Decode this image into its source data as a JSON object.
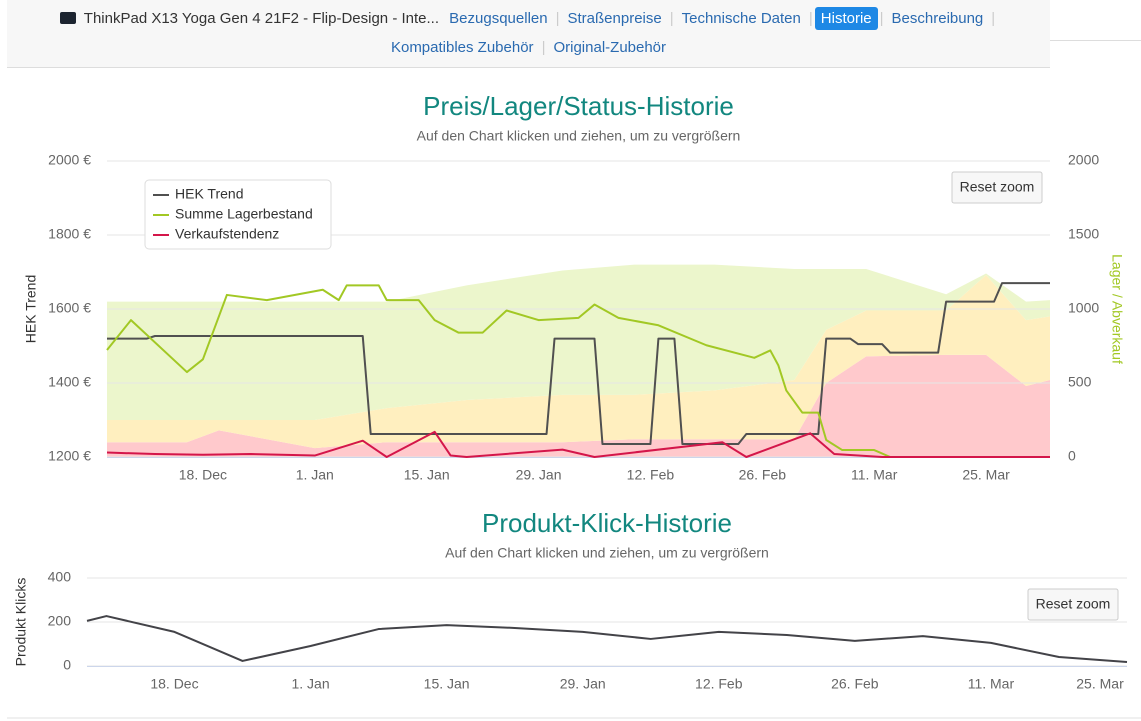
{
  "nav": {
    "product": "ThinkPad X13 Yoga Gen 4 21F2 - Flip-Design - Inte...",
    "links": [
      "Bezugsquellen",
      "Straßenpreise",
      "Technische Daten",
      "Historie",
      "Beschreibung",
      "Kompatibles Zubehör",
      "Original-Zubehör"
    ],
    "active": "Historie"
  },
  "chart_data": [
    {
      "type": "line",
      "title": "Preis/Lager/Status-Historie",
      "subtitle": "Auf den Chart klicken und ziehen, um zu vergrößern",
      "button": "Reset zoom",
      "y_label": "HEK Trend",
      "y2_label": "Lager / Abverkauf",
      "xlim": [
        "Dec 6",
        "Apr 2"
      ],
      "xticks": [
        {
          "value": "Dec 18",
          "label": "18. Dec"
        },
        {
          "value": "Jan 1",
          "label": "1. Jan"
        },
        {
          "value": "Jan 15",
          "label": "15. Jan"
        },
        {
          "value": "Jan 29",
          "label": "29. Jan"
        },
        {
          "value": "Feb 12",
          "label": "12. Feb"
        },
        {
          "value": "Feb 26",
          "label": "26. Feb"
        },
        {
          "value": "Mar 11",
          "label": "11. Mar"
        },
        {
          "value": "Mar 25",
          "label": "25. Mar"
        }
      ],
      "ylim": [
        1200,
        2000
      ],
      "yticks": [
        {
          "value": 1200,
          "label": "1200 €"
        },
        {
          "value": 1400,
          "label": "1400 €"
        },
        {
          "value": 1600,
          "label": "1600 €"
        },
        {
          "value": 1800,
          "label": "1800 €"
        },
        {
          "value": 2000,
          "label": "2000 €"
        }
      ],
      "y2lim": [
        0,
        2000
      ],
      "y2ticks": [
        0,
        500,
        1000,
        1500,
        2000
      ],
      "grid": true,
      "legend": "upper left",
      "series": [
        {
          "type": "area",
          "stack": true,
          "axis": "y2",
          "color": "#ffc9cc",
          "x": [
            "Dec 6",
            "Dec 16",
            "Dec 20",
            "Jan 1",
            "Jan 10",
            "Jan 20",
            "Feb 1",
            "Feb 10",
            "Feb 20",
            "Mar 1",
            "Mar 5",
            "Mar 10",
            "Mar 20",
            "Mar 25",
            "Mar 30",
            "Apr 2"
          ],
          "values": [
            100,
            100,
            180,
            60,
            100,
            100,
            100,
            120,
            120,
            120,
            500,
            680,
            690,
            690,
            480,
            520
          ]
        },
        {
          "type": "area",
          "stack": true,
          "axis": "y2",
          "color": "#ffefbf",
          "x": [
            "Dec 6",
            "Dec 16",
            "Dec 20",
            "Jan 1",
            "Jan 10",
            "Jan 20",
            "Feb 1",
            "Feb 10",
            "Feb 20",
            "Mar 1",
            "Mar 5",
            "Mar 10",
            "Mar 20",
            "Mar 25",
            "Mar 30",
            "Apr 2"
          ],
          "values": [
            150,
            150,
            70,
            190,
            230,
            285,
            320,
            300,
            330,
            400,
            360,
            310,
            300,
            540,
            445,
            430
          ]
        },
        {
          "type": "area",
          "stack": true,
          "axis": "y2",
          "color": "#ecf6cc",
          "x": [
            "Dec 6",
            "Dec 16",
            "Dec 20",
            "Jan 1",
            "Jan 10",
            "Jan 20",
            "Feb 1",
            "Feb 10",
            "Feb 20",
            "Mar 1",
            "Mar 5",
            "Mar 10",
            "Mar 20",
            "Mar 25",
            "Mar 30",
            "Apr 2"
          ],
          "values": [
            800,
            800,
            800,
            800,
            720,
            775,
            840,
            880,
            850,
            750,
            410,
            280,
            110,
            10,
            125,
            110
          ]
        },
        {
          "name": "HEK Trend",
          "color": "#505050",
          "x": [
            "Dec 6",
            "Dec 11",
            "Dec 12",
            "Jan 7",
            "Jan 8",
            "Jan 30",
            "Jan 31",
            "Feb 5",
            "Feb 6",
            "Feb 12",
            "Feb 13",
            "Feb 15",
            "Feb 16",
            "Feb 23",
            "Feb 24",
            "Mar 4",
            "Mar 5",
            "Mar 8",
            "Mar 9",
            "Mar 12",
            "Mar 13",
            "Mar 19",
            "Mar 20",
            "Mar 26",
            "Mar 27",
            "Apr 2"
          ],
          "values": [
            1520,
            1520,
            1527,
            1527,
            1262,
            1262,
            1520,
            1520,
            1235,
            1235,
            1520,
            1520,
            1235,
            1235,
            1262,
            1262,
            1520,
            1520,
            1505,
            1505,
            1482,
            1482,
            1620,
            1620,
            1670,
            1670
          ]
        },
        {
          "name": "Summe Lagerbestand",
          "color": "#a2c824",
          "axis": "y2",
          "x": [
            "Dec 6",
            "Dec 9",
            "Dec 16",
            "Dec 18",
            "Dec 21",
            "Dec 26",
            "Jan 2",
            "Jan 4",
            "Jan 5",
            "Jan 9",
            "Jan 10",
            "Jan 14",
            "Jan 16",
            "Jan 19",
            "Jan 22",
            "Jan 25",
            "Jan 29",
            "Feb 3",
            "Feb 5",
            "Feb 8",
            "Feb 13",
            "Feb 19",
            "Feb 25",
            "Feb 27",
            "Feb 28",
            "Feb 29",
            "Mar 2",
            "Mar 4",
            "Mar 5",
            "Mar 7",
            "Mar 11",
            "Mar 13",
            "Apr 2"
          ],
          "values": [
            723,
            925,
            574,
            660,
            1095,
            1060,
            1130,
            1060,
            1160,
            1160,
            1060,
            1060,
            925,
            840,
            840,
            990,
            925,
            940,
            1030,
            940,
            890,
            755,
            670,
            720,
            620,
            450,
            300,
            300,
            115,
            47,
            47,
            0,
            0
          ]
        },
        {
          "name": "Verkaufstendenz",
          "color": "#d4164a",
          "axis": "y2",
          "x": [
            "Dec 6",
            "Dec 12",
            "Dec 18",
            "Dec 24",
            "Jan 1",
            "Jan 7",
            "Jan 10",
            "Jan 16",
            "Jan 18",
            "Jan 20",
            "Feb 1",
            "Feb 5",
            "Feb 21",
            "Feb 24",
            "Mar 3",
            "Mar 6",
            "Mar 12",
            "Apr 2"
          ],
          "values": [
            30,
            20,
            15,
            20,
            10,
            110,
            0,
            170,
            10,
            0,
            50,
            0,
            100,
            0,
            160,
            20,
            0,
            0
          ]
        }
      ]
    },
    {
      "type": "line",
      "title": "Produkt-Klick-Historie",
      "subtitle": "Auf den Chart klicken und ziehen, um zu vergrößern",
      "button": "Reset zoom",
      "y_label": "Produkt Klicks",
      "xlim": [
        "Dec 9",
        "Mar 25"
      ],
      "xticks": [
        {
          "value": "Dec 18",
          "label": "18. Dec"
        },
        {
          "value": "Jan 1",
          "label": "1. Jan"
        },
        {
          "value": "Jan 15",
          "label": "15. Jan"
        },
        {
          "value": "Jan 29",
          "label": "29. Jan"
        },
        {
          "value": "Feb 12",
          "label": "12. Feb"
        },
        {
          "value": "Feb 26",
          "label": "26. Feb"
        },
        {
          "value": "Mar 11",
          "label": "11. Mar"
        },
        {
          "value": "Mar 25",
          "label": "25. Mar"
        }
      ],
      "ylim": [
        0,
        400
      ],
      "yticks": [
        0,
        200,
        400
      ],
      "grid": true,
      "series": [
        {
          "color": "#434348",
          "x": [
            "Dec 9",
            "Dec 11",
            "Dec 18",
            "Dec 25",
            "Jan 1",
            "Jan 8",
            "Jan 15",
            "Jan 22",
            "Jan 29",
            "Feb 5",
            "Feb 12",
            "Feb 19",
            "Feb 26",
            "Mar 4",
            "Mar 11",
            "Mar 18",
            "Mar 25"
          ],
          "values": [
            205,
            227,
            155,
            23,
            91,
            168,
            186,
            173,
            155,
            123,
            155,
            141,
            114,
            136,
            105,
            41,
            18
          ]
        }
      ]
    }
  ]
}
